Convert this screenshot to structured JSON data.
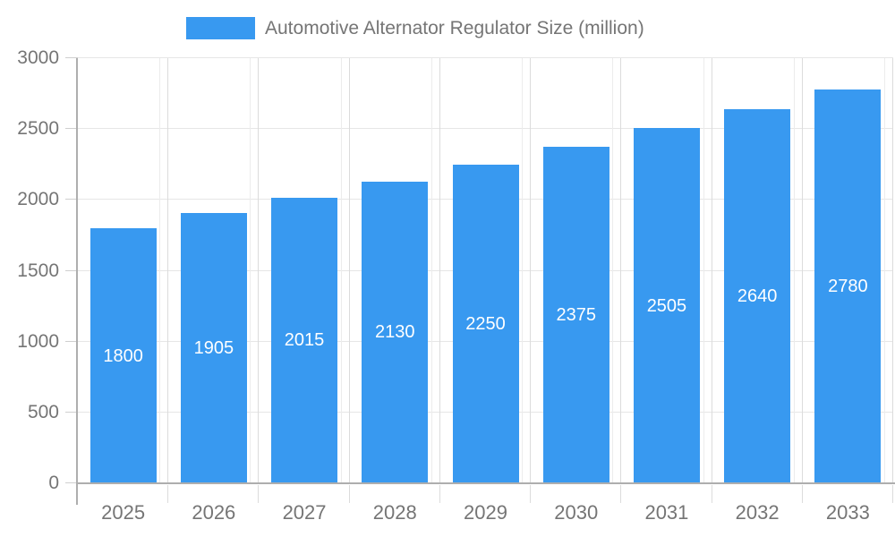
{
  "chart_data": {
    "type": "bar",
    "title": "Automotive Alternator Regulator Size (million)",
    "legend": {
      "position": "top",
      "label": "Automotive Alternator Regulator Size (million)"
    },
    "categories": [
      "2025",
      "2026",
      "2027",
      "2028",
      "2029",
      "2030",
      "2031",
      "2032",
      "2033"
    ],
    "values": [
      1800,
      1905,
      2015,
      2130,
      2250,
      2375,
      2505,
      2640,
      2780
    ],
    "xlabel": "",
    "ylabel": "",
    "ylim": [
      0,
      3000
    ],
    "yticks": [
      0,
      500,
      1000,
      1500,
      2000,
      2500,
      3000
    ],
    "grid": true,
    "bar_color": "#3899f0",
    "value_label_color": "#ffffff",
    "text_color": "#757575",
    "grid_color": "#e6e6e6",
    "grid_color_light": "#ececec",
    "grid_color_dark": "#dcdcdc",
    "axis_color": "#aeaeae",
    "tick_color": "#cfcfcf",
    "background": "#ffffff"
  }
}
